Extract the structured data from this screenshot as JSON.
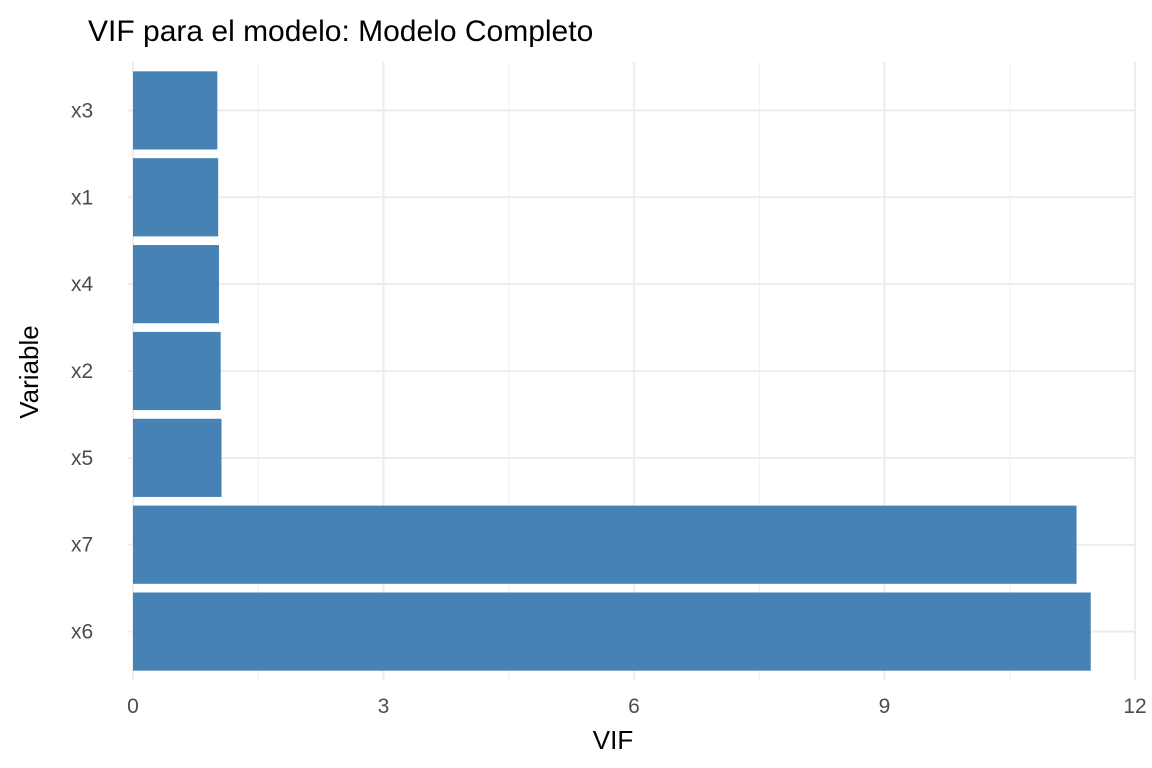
{
  "chart_data": {
    "type": "bar",
    "orientation": "horizontal",
    "title": "VIF para el modelo: Modelo Completo",
    "xlabel": "VIF",
    "ylabel": "Variable",
    "categories": [
      "x6",
      "x7",
      "x5",
      "x2",
      "x4",
      "x1",
      "x3"
    ],
    "values": [
      11.47,
      11.3,
      1.06,
      1.05,
      1.03,
      1.02,
      1.01
    ],
    "xlim": [
      0,
      12
    ],
    "xticks": [
      0,
      3,
      6,
      9,
      12
    ],
    "xtick_labels": [
      "0",
      "3",
      "6",
      "9",
      "12"
    ],
    "grid": true,
    "legend": "none",
    "colors": {
      "bar": "#4682B4",
      "grid_major": "#EBEBEB",
      "grid_minor": "#F2F2F2",
      "tick_text": "#4D4D4D",
      "text": "#000000",
      "background": "#FFFFFF"
    }
  }
}
